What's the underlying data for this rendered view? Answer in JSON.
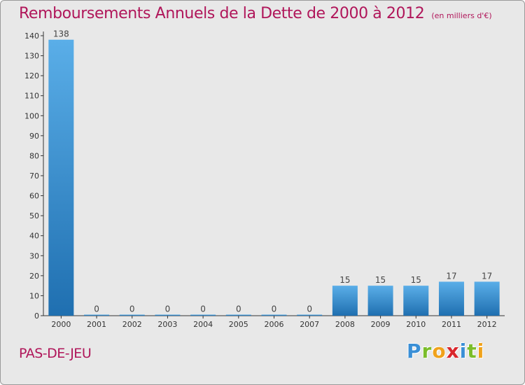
{
  "title": "Remboursements Annuels de la Dette de 2000 à 2012",
  "unit_note": "(en milliers d'€)",
  "commune": "PAS-DE-JEU",
  "brand": {
    "letters": [
      "P",
      "r",
      "o",
      "x",
      "i",
      "t",
      "i"
    ],
    "colors": [
      "#3a8fd6",
      "#7bbd2a",
      "#f0a21b",
      "#d9262c",
      "#3a8fd6",
      "#7bbd2a",
      "#f0a21b"
    ]
  },
  "colors": {
    "bar_top": "#5aaee8",
    "bar_bottom": "#1f6fb0",
    "title": "#b0165a",
    "background": "#e8e8e8"
  },
  "chart_data": {
    "type": "bar",
    "categories": [
      "2000",
      "2001",
      "2002",
      "2003",
      "2004",
      "2005",
      "2006",
      "2007",
      "2008",
      "2009",
      "2010",
      "2011",
      "2012"
    ],
    "values": [
      138,
      0,
      0,
      0,
      0,
      0,
      0,
      0,
      15,
      15,
      15,
      17,
      17
    ],
    "data_labels": [
      "138",
      "0",
      "0",
      "0",
      "0",
      "0",
      "0",
      "0",
      "15",
      "15",
      "15",
      "17",
      "17"
    ],
    "yticks": [
      0,
      10,
      20,
      30,
      40,
      50,
      60,
      70,
      80,
      90,
      100,
      110,
      120,
      130,
      140
    ],
    "ylim": [
      0,
      140
    ],
    "grid": false,
    "xlabel": "",
    "ylabel": ""
  }
}
